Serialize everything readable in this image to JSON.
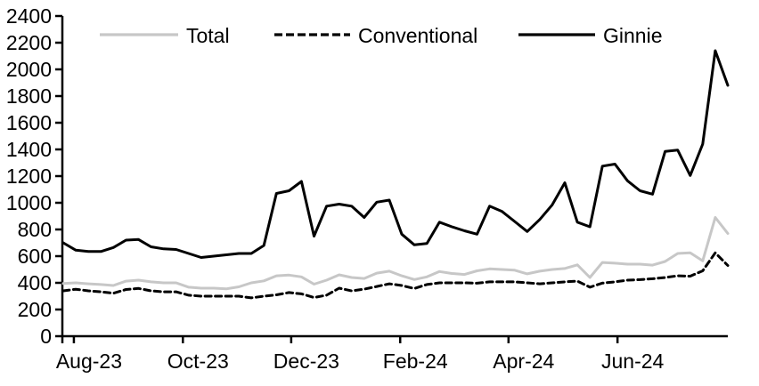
{
  "chart_data": {
    "type": "line",
    "title": "",
    "xlabel": "",
    "ylabel": "",
    "ylim": [
      0,
      2400
    ],
    "y_tick_step": 200,
    "y_tick_labels": [
      "0",
      "200",
      "400",
      "600",
      "800",
      "1000",
      "1200",
      "1400",
      "1600",
      "1800",
      "2000",
      "2200",
      "2400"
    ],
    "x_ticks": [
      {
        "label": "Aug-23",
        "pos": 0.016
      },
      {
        "label": "Oct-23",
        "pos": 0.18
      },
      {
        "label": "Dec-23",
        "pos": 0.343
      },
      {
        "label": "Feb-24",
        "pos": 0.507
      },
      {
        "label": "Apr-24",
        "pos": 0.67
      },
      {
        "label": "Jun-24",
        "pos": 0.834
      }
    ],
    "grid": false,
    "legend_position": "top",
    "frequency": "weekly",
    "colors": {
      "total": "#c7c7c7",
      "conventional": "#000000",
      "ginnie": "#000000",
      "axis": "#000000",
      "background": "#ffffff"
    },
    "series": [
      {
        "name": "Total",
        "color": "#c7c7c7",
        "style": "solid",
        "values": [
          395,
          400,
          393,
          387,
          380,
          413,
          420,
          407,
          400,
          400,
          367,
          360,
          360,
          355,
          370,
          400,
          415,
          453,
          458,
          445,
          390,
          420,
          460,
          440,
          433,
          473,
          487,
          453,
          425,
          445,
          485,
          470,
          463,
          490,
          505,
          500,
          495,
          467,
          487,
          500,
          507,
          535,
          440,
          553,
          547,
          540,
          540,
          533,
          560,
          620,
          625,
          565,
          890,
          770
        ]
      },
      {
        "name": "Conventional",
        "color": "#000000",
        "style": "dashed",
        "values": [
          340,
          352,
          340,
          333,
          322,
          350,
          358,
          340,
          333,
          333,
          307,
          300,
          300,
          300,
          300,
          287,
          300,
          310,
          327,
          317,
          290,
          307,
          360,
          340,
          353,
          373,
          393,
          380,
          357,
          387,
          400,
          400,
          400,
          397,
          407,
          407,
          407,
          400,
          393,
          400,
          407,
          413,
          367,
          398,
          407,
          420,
          424,
          431,
          440,
          453,
          450,
          490,
          625,
          530
        ]
      },
      {
        "name": "Ginnie",
        "color": "#000000",
        "style": "solid",
        "values": [
          700,
          645,
          635,
          635,
          665,
          720,
          725,
          670,
          655,
          650,
          620,
          590,
          600,
          610,
          620,
          620,
          680,
          1070,
          1090,
          1160,
          750,
          975,
          990,
          975,
          890,
          1005,
          1020,
          765,
          685,
          695,
          855,
          820,
          790,
          765,
          975,
          935,
          860,
          785,
          875,
          985,
          1150,
          855,
          820,
          1275,
          1290,
          1165,
          1090,
          1065,
          1385,
          1395,
          1205,
          1440,
          2140,
          1880
        ]
      }
    ]
  }
}
